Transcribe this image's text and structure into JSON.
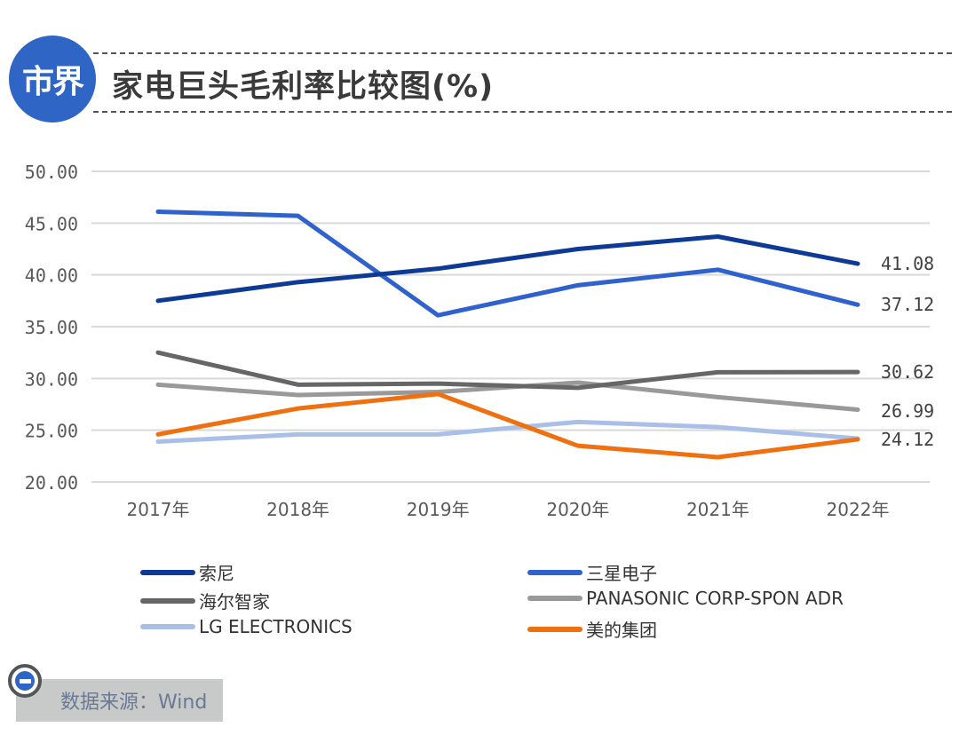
{
  "header": {
    "logo_text": "市界",
    "title": "家电巨头毛利率比较图(%)"
  },
  "source": {
    "label": "数据来源：Wind"
  },
  "chart_data": {
    "type": "line",
    "title": "家电巨头毛利率比较图(%)",
    "xlabel": "",
    "ylabel": "",
    "categories": [
      "2017年",
      "2018年",
      "2019年",
      "2020年",
      "2021年",
      "2022年"
    ],
    "ylim": [
      20,
      50
    ],
    "yticks": [
      "50.00",
      "45.00",
      "40.00",
      "35.00",
      "30.00",
      "25.00",
      "20.00"
    ],
    "ytick_values": [
      50,
      45,
      40,
      35,
      30,
      25,
      20
    ],
    "grid": true,
    "legend_position": "bottom",
    "series": [
      {
        "name": "索尼",
        "color": "#0d3a94",
        "values": [
          37.5,
          39.3,
          40.6,
          42.5,
          43.7,
          41.08
        ],
        "end_label": "41.08"
      },
      {
        "name": "三星电子",
        "color": "#2f62cc",
        "values": [
          46.1,
          45.7,
          36.1,
          39.0,
          40.5,
          37.12
        ],
        "end_label": "37.12"
      },
      {
        "name": "海尔智家",
        "color": "#666666",
        "values": [
          32.5,
          29.4,
          29.5,
          29.1,
          30.6,
          30.62
        ],
        "end_label": "30.62"
      },
      {
        "name": "PANASONIC CORP-SPON ADR",
        "color": "#999999",
        "values": [
          29.4,
          28.4,
          28.7,
          29.6,
          28.2,
          26.99
        ],
        "end_label": "26.99"
      },
      {
        "name": "LG ELECTRONICS",
        "color": "#a9bfe8",
        "values": [
          23.9,
          24.6,
          24.6,
          25.8,
          25.3,
          24.2
        ],
        "end_label": ""
      },
      {
        "name": "美的集团",
        "color": "#f07010",
        "values": [
          24.6,
          27.1,
          28.5,
          23.5,
          22.4,
          24.12
        ],
        "end_label": "24.12"
      }
    ]
  }
}
